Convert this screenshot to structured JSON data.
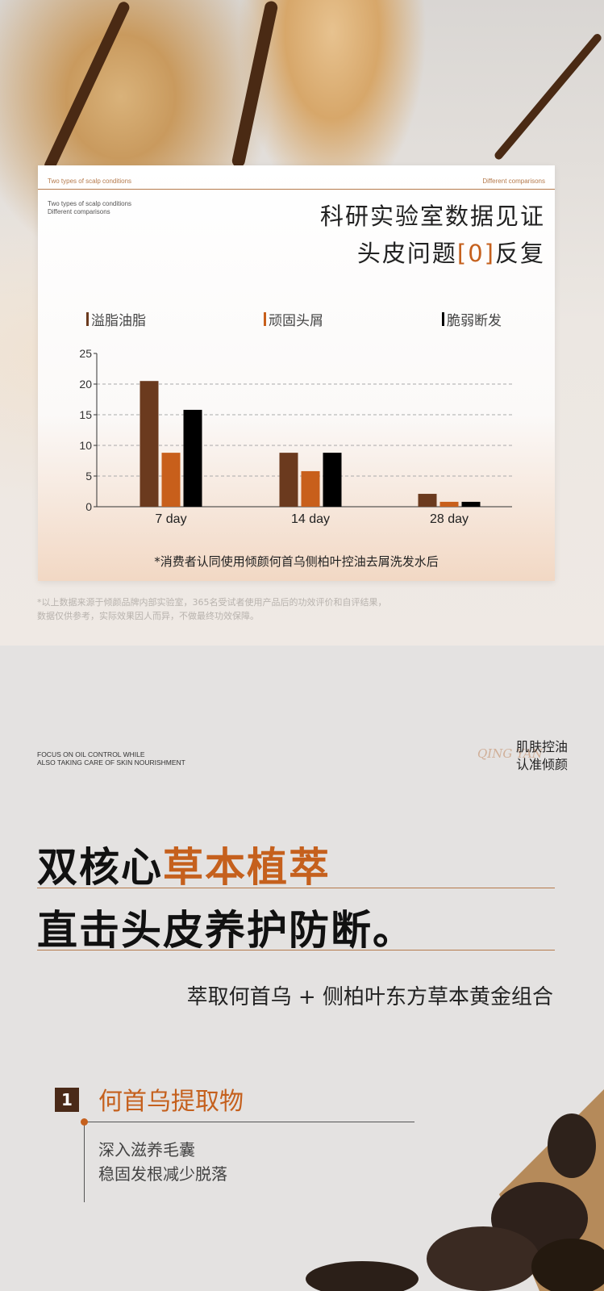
{
  "card": {
    "header_left": "Two types of scalp conditions",
    "header_right": "Different comparisons",
    "sub_line1": "Two types of scalp conditions",
    "sub_line2": "Different comparisons",
    "title_line1": "科研实验室数据见证",
    "title_line2_pre": "头皮问题",
    "title_line2_accent": "[0]",
    "title_line2_post": "反复",
    "footnote": "*消费者认同使用倾颜何首乌侧柏叶控油去屑洗发水后"
  },
  "chart_data": {
    "type": "bar",
    "categories": [
      "7 day",
      "14 day",
      "28 day"
    ],
    "series": [
      {
        "name": "溢脂油脂",
        "color": "#6b3a1e",
        "values": [
          20.5,
          8.8,
          2.1
        ]
      },
      {
        "name": "顽固头屑",
        "color": "#c85f1b",
        "values": [
          8.8,
          5.8,
          0.8
        ]
      },
      {
        "name": "脆弱断发",
        "color": "#000000",
        "values": [
          15.8,
          8.8,
          0.8
        ]
      }
    ],
    "ylim": [
      0,
      25
    ],
    "yticks": [
      0,
      5,
      10,
      15,
      20,
      25
    ],
    "grid": true,
    "legend": "top"
  },
  "disclaimer": {
    "line1": "*以上数据来源于倾颜品牌内部实验室，365名受试者使用产品后的功效评价和自评结果，",
    "line2": "数据仅供参考，实际效果因人而异，不做最终功效保障。"
  },
  "section2": {
    "en_line1": "FOCUS ON OIL CONTROL WHILE",
    "en_line2": "ALSO TAKING CARE OF SKIN NOURISHMENT",
    "slogan_line1": "肌肤控油",
    "slogan_line2": "认准倾颜",
    "script_logo": "QING YAN",
    "headline1_pre": "双核心",
    "headline1_accent": "草本植萃",
    "headline2": "直击头皮养护防断。",
    "tagline": "萃取何首乌 + 侧柏叶东方草本黄金组合",
    "item_number": "1",
    "item_title": "何首乌提取物",
    "item_desc1": "深入滋养毛囊",
    "item_desc2": "稳固发根减少脱落"
  }
}
